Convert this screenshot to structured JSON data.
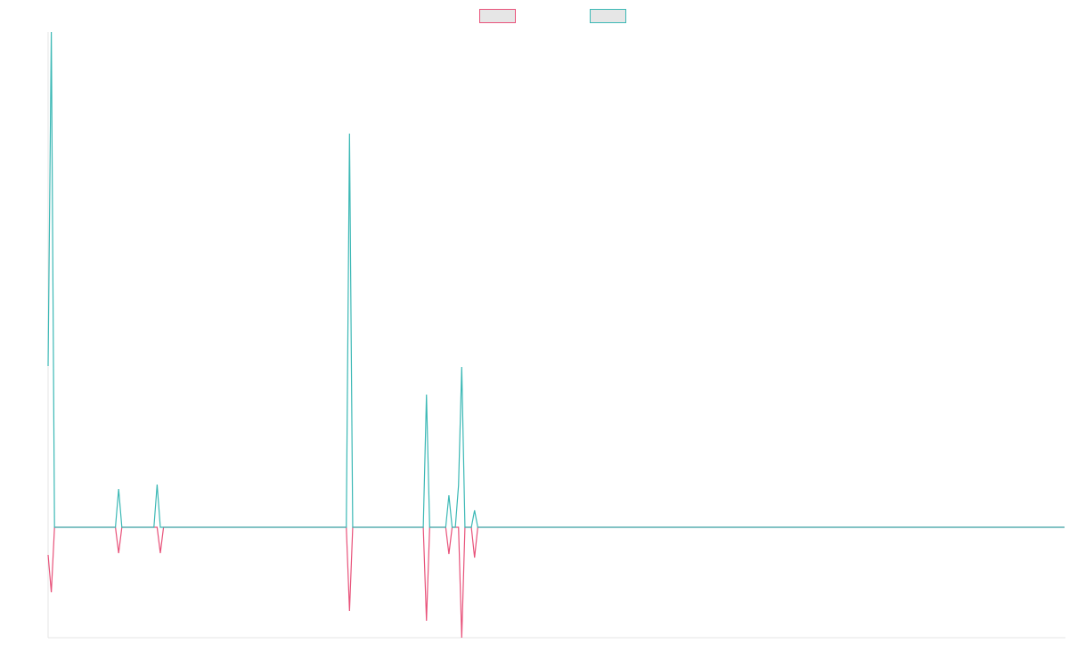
{
  "chart_data": {
    "type": "line",
    "x": [
      0,
      1,
      2,
      21,
      22,
      23,
      33,
      34,
      35,
      36,
      93,
      94,
      95,
      117,
      118,
      119,
      124,
      125,
      126,
      127,
      128,
      129,
      130,
      132,
      133,
      134,
      317
    ],
    "series": [
      {
        "color": "#e8527a",
        "values": [
          -31,
          -73,
          0,
          0,
          -29,
          0,
          0,
          0,
          -29,
          0,
          0,
          -94,
          0,
          0,
          -105,
          0,
          0,
          -30,
          0,
          0,
          0,
          -124,
          0,
          0,
          -34,
          0,
          0
        ]
      },
      {
        "color": "#3bb8b5",
        "values": [
          181,
          556,
          0,
          0,
          43,
          0,
          0,
          48,
          0,
          0,
          0,
          442,
          0,
          0,
          149,
          0,
          0,
          36,
          0,
          0,
          47,
          180,
          0,
          0,
          19,
          0,
          0
        ]
      }
    ],
    "xlim": [
      0,
      317
    ],
    "ylim": [
      -124,
      556
    ],
    "legend": "top"
  }
}
